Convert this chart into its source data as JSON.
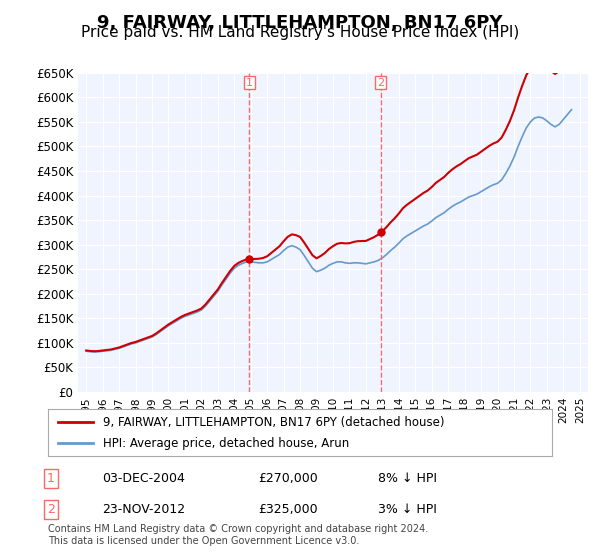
{
  "title": "9, FAIRWAY, LITTLEHAMPTON, BN17 6PY",
  "subtitle": "Price paid vs. HM Land Registry's House Price Index (HPI)",
  "title_fontsize": 13,
  "subtitle_fontsize": 11,
  "background_color": "#ffffff",
  "plot_bg_color": "#f0f4ff",
  "ylim": [
    0,
    650000
  ],
  "yticks": [
    0,
    50000,
    100000,
    150000,
    200000,
    250000,
    300000,
    350000,
    400000,
    450000,
    500000,
    550000,
    600000,
    650000
  ],
  "ytick_labels": [
    "£0",
    "£50K",
    "£100K",
    "£150K",
    "£200K",
    "£250K",
    "£300K",
    "£350K",
    "£400K",
    "£450K",
    "£500K",
    "£550K",
    "£600K",
    "£650K"
  ],
  "xlim_start": 1994.5,
  "xlim_end": 2025.5,
  "xtick_years": [
    1995,
    1996,
    1997,
    1998,
    1999,
    2000,
    2001,
    2002,
    2003,
    2004,
    2005,
    2006,
    2007,
    2008,
    2009,
    2010,
    2011,
    2012,
    2013,
    2014,
    2015,
    2016,
    2017,
    2018,
    2019,
    2020,
    2021,
    2022,
    2023,
    2024,
    2025
  ],
  "hpi_years": [
    1995.0,
    1995.25,
    1995.5,
    1995.75,
    1996.0,
    1996.25,
    1996.5,
    1996.75,
    1997.0,
    1997.25,
    1997.5,
    1997.75,
    1998.0,
    1998.25,
    1998.5,
    1998.75,
    1999.0,
    1999.25,
    1999.5,
    1999.75,
    2000.0,
    2000.25,
    2000.5,
    2000.75,
    2001.0,
    2001.25,
    2001.5,
    2001.75,
    2002.0,
    2002.25,
    2002.5,
    2002.75,
    2003.0,
    2003.25,
    2003.5,
    2003.75,
    2004.0,
    2004.25,
    2004.5,
    2004.75,
    2005.0,
    2005.25,
    2005.5,
    2005.75,
    2006.0,
    2006.25,
    2006.5,
    2006.75,
    2007.0,
    2007.25,
    2007.5,
    2007.75,
    2008.0,
    2008.25,
    2008.5,
    2008.75,
    2009.0,
    2009.25,
    2009.5,
    2009.75,
    2010.0,
    2010.25,
    2010.5,
    2010.75,
    2011.0,
    2011.25,
    2011.5,
    2011.75,
    2012.0,
    2012.25,
    2012.5,
    2012.75,
    2013.0,
    2013.25,
    2013.5,
    2013.75,
    2014.0,
    2014.25,
    2014.5,
    2014.75,
    2015.0,
    2015.25,
    2015.5,
    2015.75,
    2016.0,
    2016.25,
    2016.5,
    2016.75,
    2017.0,
    2017.25,
    2017.5,
    2017.75,
    2018.0,
    2018.25,
    2018.5,
    2018.75,
    2019.0,
    2019.25,
    2019.5,
    2019.75,
    2020.0,
    2020.25,
    2020.5,
    2020.75,
    2021.0,
    2021.25,
    2021.5,
    2021.75,
    2022.0,
    2022.25,
    2022.5,
    2022.75,
    2023.0,
    2023.25,
    2023.5,
    2023.75,
    2024.0,
    2024.25,
    2024.5
  ],
  "hpi_values": [
    83000,
    82000,
    81500,
    82000,
    83000,
    84000,
    85000,
    87000,
    89000,
    92000,
    95000,
    98000,
    100000,
    103000,
    106000,
    109000,
    112000,
    117000,
    123000,
    129000,
    135000,
    140000,
    145000,
    150000,
    154000,
    157000,
    160000,
    163000,
    167000,
    175000,
    185000,
    195000,
    205000,
    218000,
    230000,
    242000,
    252000,
    258000,
    262000,
    265000,
    265000,
    264000,
    263000,
    263000,
    265000,
    270000,
    275000,
    280000,
    288000,
    295000,
    298000,
    295000,
    290000,
    278000,
    265000,
    252000,
    245000,
    248000,
    252000,
    258000,
    262000,
    265000,
    265000,
    263000,
    262000,
    263000,
    263000,
    262000,
    261000,
    263000,
    265000,
    268000,
    273000,
    280000,
    288000,
    295000,
    303000,
    312000,
    318000,
    323000,
    328000,
    333000,
    338000,
    342000,
    348000,
    355000,
    360000,
    365000,
    372000,
    378000,
    383000,
    387000,
    392000,
    397000,
    400000,
    403000,
    408000,
    413000,
    418000,
    422000,
    425000,
    432000,
    445000,
    460000,
    478000,
    500000,
    520000,
    538000,
    550000,
    558000,
    560000,
    558000,
    552000,
    545000,
    540000,
    545000,
    555000,
    565000,
    575000
  ],
  "price_years": [
    2004.92,
    2012.9
  ],
  "price_values": [
    270000,
    325000
  ],
  "sale1_year": 2004.92,
  "sale1_value": 270000,
  "sale1_label": "1",
  "sale2_year": 2012.9,
  "sale2_value": 325000,
  "sale2_label": "2",
  "red_line_color": "#cc0000",
  "blue_line_color": "#6699cc",
  "vline_color": "#ff6666",
  "marker_color": "#cc0000",
  "legend_line1": "9, FAIRWAY, LITTLEHAMPTON, BN17 6PY (detached house)",
  "legend_line2": "HPI: Average price, detached house, Arun",
  "table_row1_num": "1",
  "table_row1_date": "03-DEC-2004",
  "table_row1_price": "£270,000",
  "table_row1_hpi": "8% ↓ HPI",
  "table_row2_num": "2",
  "table_row2_date": "23-NOV-2012",
  "table_row2_price": "£325,000",
  "table_row2_hpi": "3% ↓ HPI",
  "footer_text": "Contains HM Land Registry data © Crown copyright and database right 2024.\nThis data is licensed under the Open Government Licence v3.0.",
  "font_family": "DejaVu Sans"
}
